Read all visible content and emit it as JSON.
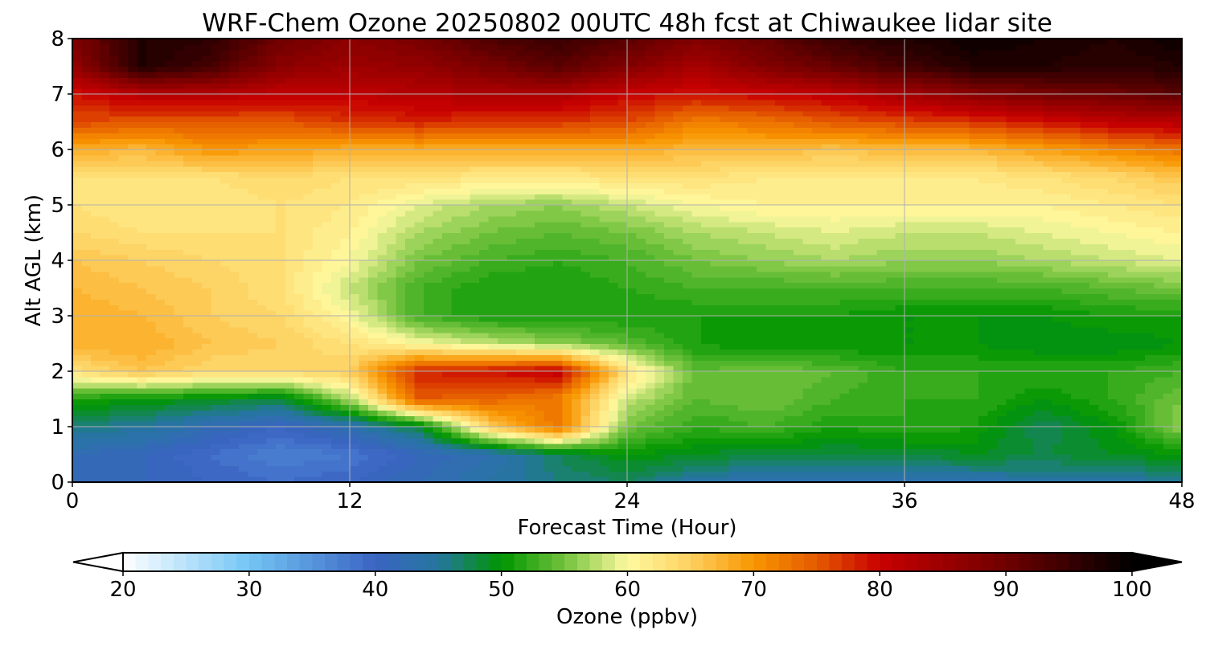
{
  "chart_data": {
    "type": "heatmap",
    "title": "WRF-Chem Ozone  20250802 00UTC 48h fcst at Chiwaukee lidar site",
    "xlabel": "Forecast Time (Hour)",
    "ylabel": "Alt AGL (km)",
    "xlim": [
      0,
      48
    ],
    "ylim": [
      0,
      8
    ],
    "x_ticks": [
      0,
      12,
      24,
      36,
      48
    ],
    "y_ticks": [
      0,
      1,
      2,
      3,
      4,
      5,
      6,
      7,
      8
    ],
    "grid": true,
    "x": [
      0,
      3,
      6,
      9,
      12,
      15,
      18,
      21,
      24,
      27,
      30,
      33,
      36,
      39,
      42,
      45,
      48
    ],
    "y": [
      0,
      0.5,
      1,
      1.5,
      2,
      2.5,
      3,
      3.5,
      4,
      4.5,
      5,
      5.5,
      6,
      6.5,
      7,
      7.5,
      8
    ],
    "z": [
      [
        41,
        41,
        40,
        39,
        40,
        42,
        44,
        46,
        47,
        44,
        43,
        43,
        43,
        43,
        44,
        44,
        45
      ],
      [
        42,
        41,
        39,
        37,
        38,
        41,
        43,
        47,
        50,
        49,
        48,
        48,
        48,
        49,
        48,
        49,
        50
      ],
      [
        46,
        45,
        42,
        40,
        43,
        48,
        65,
        73,
        55,
        52,
        53,
        51,
        52,
        51,
        47,
        50,
        56
      ],
      [
        51,
        50,
        49,
        48,
        57,
        75,
        74,
        72,
        58,
        54,
        55,
        53,
        52,
        52,
        50,
        52,
        55
      ],
      [
        63,
        66,
        64,
        64,
        65,
        78,
        79,
        81,
        63,
        54,
        55,
        54,
        52,
        52,
        52,
        52,
        53
      ],
      [
        68,
        68,
        66,
        65,
        63,
        60,
        58,
        56,
        54,
        51,
        50,
        50,
        50,
        50,
        49,
        49,
        50
      ],
      [
        68,
        67,
        65,
        64,
        60,
        53,
        51,
        51,
        51,
        51,
        51,
        51,
        50,
        50,
        50,
        51,
        51
      ],
      [
        67,
        66,
        65,
        63,
        58,
        53,
        51,
        51,
        52,
        53,
        53,
        53,
        53,
        53,
        53,
        54,
        55
      ],
      [
        66,
        65,
        64,
        63,
        60,
        55,
        53,
        52,
        53,
        55,
        56,
        57,
        56,
        56,
        57,
        58,
        59
      ],
      [
        64,
        63,
        63,
        63,
        61,
        57,
        55,
        54,
        55,
        57,
        58,
        59,
        58,
        58,
        59,
        60,
        61
      ],
      [
        63,
        62,
        62,
        63,
        62,
        59,
        57,
        56,
        58,
        60,
        61,
        61,
        61,
        61,
        61,
        62,
        63
      ],
      [
        63,
        63,
        63,
        64,
        63,
        63,
        62,
        62,
        63,
        63,
        62,
        62,
        62,
        62,
        63,
        64,
        66
      ],
      [
        68,
        67,
        70,
        69,
        68,
        68,
        68,
        68,
        68,
        67,
        67,
        66,
        67,
        67,
        69,
        71,
        73
      ],
      [
        76,
        75,
        75,
        75,
        77,
        78,
        77,
        77,
        76,
        72,
        73,
        75,
        76,
        77,
        79,
        81,
        82
      ],
      [
        79,
        82,
        82,
        81,
        81,
        82,
        83,
        83,
        80,
        79,
        80,
        81,
        84,
        87,
        89,
        90,
        92
      ],
      [
        86,
        97,
        94,
        87,
        85,
        86,
        89,
        92,
        88,
        84,
        88,
        91,
        94,
        97,
        97,
        96,
        97
      ],
      [
        88,
        97,
        96,
        90,
        87,
        89,
        93,
        95,
        92,
        88,
        91,
        95,
        97,
        99,
        98,
        97,
        99
      ]
    ],
    "colorbar": {
      "label": "Ozone  (ppbv)",
      "min": 20,
      "max": 100,
      "ticks": [
        20,
        30,
        40,
        50,
        60,
        70,
        80,
        90,
        100
      ],
      "extend": "both",
      "orientation": "horizontal",
      "placement": "bottom",
      "colors": [
        {
          "v": 20,
          "c": "#ffffff"
        },
        {
          "v": 30,
          "c": "#73c5f5"
        },
        {
          "v": 40,
          "c": "#3a64c2"
        },
        {
          "v": 45,
          "c": "#2576a0"
        },
        {
          "v": 50,
          "c": "#009600"
        },
        {
          "v": 55,
          "c": "#72c23c"
        },
        {
          "v": 60,
          "c": "#fffaa0"
        },
        {
          "v": 65,
          "c": "#fdd060"
        },
        {
          "v": 70,
          "c": "#f99600"
        },
        {
          "v": 75,
          "c": "#e45a00"
        },
        {
          "v": 80,
          "c": "#c80000"
        },
        {
          "v": 90,
          "c": "#700000"
        },
        {
          "v": 100,
          "c": "#000000"
        }
      ]
    }
  }
}
